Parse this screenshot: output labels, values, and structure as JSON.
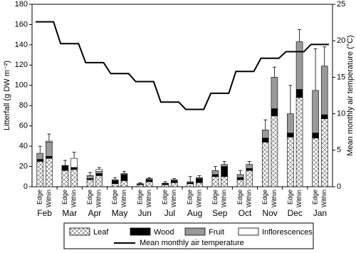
{
  "chart_data": {
    "type": "bar",
    "stacked": true,
    "ylabel": "Litterfall (g DW m⁻²)",
    "y2label": "Mean monthly air temperature (°C)",
    "months": [
      "Feb",
      "Mar",
      "Apr",
      "May",
      "Jun",
      "Jul",
      "Aug",
      "Sep",
      "Oct",
      "Nov",
      "Dec",
      "Jan"
    ],
    "categories": [
      "Edge",
      "Within",
      "Edge",
      "Within",
      "Edge",
      "Within",
      "Edge",
      "Within",
      "Edge",
      "Within",
      "Edge",
      "Within",
      "Edge",
      "Within",
      "Edge",
      "Within",
      "Edge",
      "Within",
      "Edge",
      "Within",
      "Edge",
      "Within",
      "Edge",
      "Within"
    ],
    "series": [
      {
        "name": "Leaf",
        "color": "#ffffff",
        "pattern": "crosshatch",
        "values": [
          25,
          28,
          16,
          17,
          7,
          11,
          3,
          6,
          2,
          5,
          2,
          4,
          3,
          4,
          10,
          10,
          7,
          16,
          44,
          70,
          49,
          88,
          48,
          67
        ]
      },
      {
        "name": "Wood",
        "color": "#000000",
        "values": [
          2,
          2,
          5,
          2,
          1,
          2,
          3,
          6,
          0.5,
          2,
          1,
          2,
          1,
          4,
          2,
          10,
          2,
          2,
          4,
          7,
          4,
          8,
          5,
          4
        ]
      },
      {
        "name": "Fruit",
        "color": "#999999",
        "values": [
          6,
          14,
          0,
          0,
          3,
          2,
          1,
          1,
          0.5,
          1,
          0.5,
          1,
          1,
          1,
          4,
          2,
          3,
          4,
          8,
          31,
          19,
          47,
          42,
          48
        ]
      },
      {
        "name": "Inflorescences",
        "color": "#ffffff",
        "values": [
          0,
          1,
          0,
          9,
          0,
          2,
          0,
          0,
          0,
          0,
          0,
          0,
          0,
          0,
          0,
          0,
          0,
          0,
          0,
          0,
          0,
          0,
          0,
          0
        ]
      }
    ],
    "errors": [
      7,
      7,
      5,
      6,
      3,
      2,
      2,
      2,
      1,
      1,
      1.5,
      1,
      5,
      2,
      4,
      3,
      4,
      3,
      10,
      10,
      28,
      12,
      41,
      19
    ],
    "line_series": {
      "name": "Mean monthly air temperature",
      "color": "#000000",
      "axis": "y2",
      "values": [
        22.6,
        19.6,
        17.0,
        15.5,
        14.4,
        11.6,
        10.6,
        12.8,
        15.8,
        17.6,
        18.5,
        19.5
      ]
    },
    "ylim": [
      0,
      180
    ],
    "yticks": [
      0,
      20,
      40,
      60,
      80,
      100,
      120,
      140,
      160,
      180
    ],
    "y2lim": [
      0,
      25
    ],
    "y2ticks": [
      0,
      5,
      10,
      15,
      20,
      25
    ]
  }
}
